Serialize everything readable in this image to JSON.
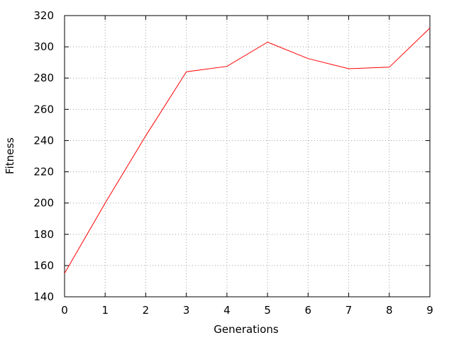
{
  "chart_data": {
    "type": "line",
    "title": "",
    "xlabel": "Generations",
    "ylabel": "Fitness",
    "xlim": [
      0,
      9
    ],
    "ylim": [
      140,
      320
    ],
    "xticks": [
      0,
      1,
      2,
      3,
      4,
      5,
      6,
      7,
      8,
      9
    ],
    "yticks": [
      140,
      160,
      180,
      200,
      220,
      240,
      260,
      280,
      300,
      320
    ],
    "grid": true,
    "legend": "none",
    "series": [
      {
        "color": "#ff0000",
        "x": [
          0,
          1,
          2,
          3,
          4,
          5,
          6,
          7,
          8,
          9
        ],
        "y": [
          155,
          200,
          243,
          284,
          287.5,
          303,
          292.5,
          286,
          287,
          312
        ]
      }
    ]
  }
}
